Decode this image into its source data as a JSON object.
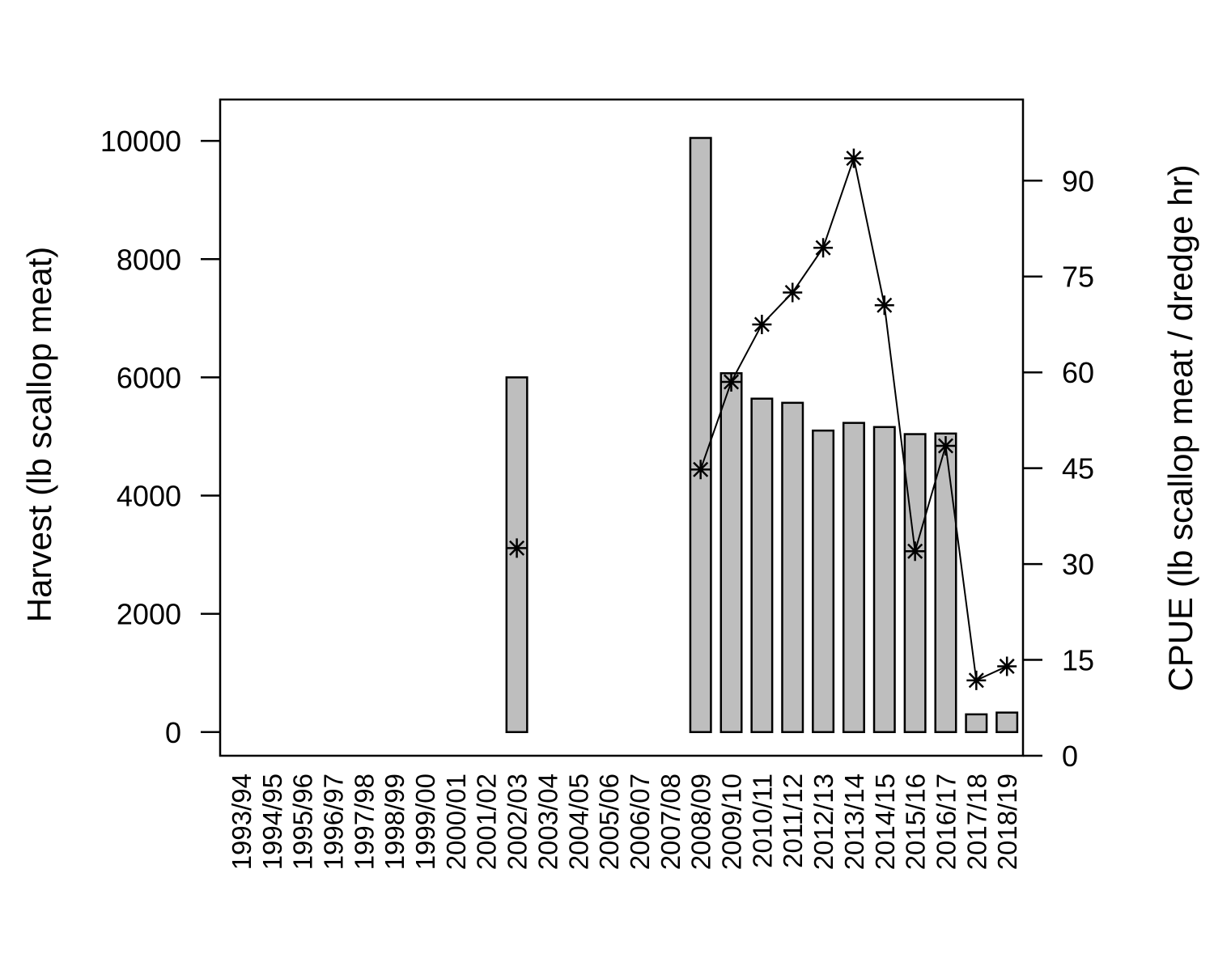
{
  "chart_data": {
    "type": "bar",
    "categories": [
      "1993/94",
      "1994/95",
      "1995/96",
      "1996/97",
      "1997/98",
      "1998/99",
      "1999/00",
      "2000/01",
      "2001/02",
      "2002/03",
      "2003/04",
      "2004/05",
      "2005/06",
      "2006/07",
      "2007/08",
      "2008/09",
      "2009/10",
      "2010/11",
      "2011/12",
      "2012/13",
      "2013/14",
      "2014/15",
      "2015/16",
      "2016/17",
      "2017/18",
      "2018/19"
    ],
    "series": [
      {
        "axis": "left",
        "mark": "bar",
        "values": [
          null,
          null,
          null,
          null,
          null,
          null,
          null,
          null,
          null,
          6000,
          null,
          null,
          null,
          null,
          null,
          10050,
          6070,
          5640,
          5570,
          5100,
          5230,
          5160,
          5040,
          5050,
          300,
          330
        ]
      },
      {
        "axis": "right",
        "mark": "line-star",
        "values": [
          null,
          null,
          null,
          null,
          null,
          null,
          null,
          null,
          null,
          32.5,
          null,
          null,
          null,
          null,
          null,
          44.8,
          58.5,
          67.5,
          72.5,
          79.5,
          93.5,
          70.5,
          32.0,
          48.5,
          11.8,
          14.0
        ]
      }
    ],
    "ylabel": "Harvest (lb scallop meat)",
    "y2label": "CPUE (lb scallop meat / dredge hr)",
    "ylim": [
      -400,
      10700
    ],
    "y2lim": [
      0,
      102.7
    ],
    "yticks": [
      0,
      2000,
      4000,
      6000,
      8000,
      10000
    ],
    "y2ticks": [
      0,
      15,
      30,
      45,
      60,
      75,
      90
    ],
    "bar_color": "#bebebe",
    "grid": false,
    "legend": "none"
  }
}
